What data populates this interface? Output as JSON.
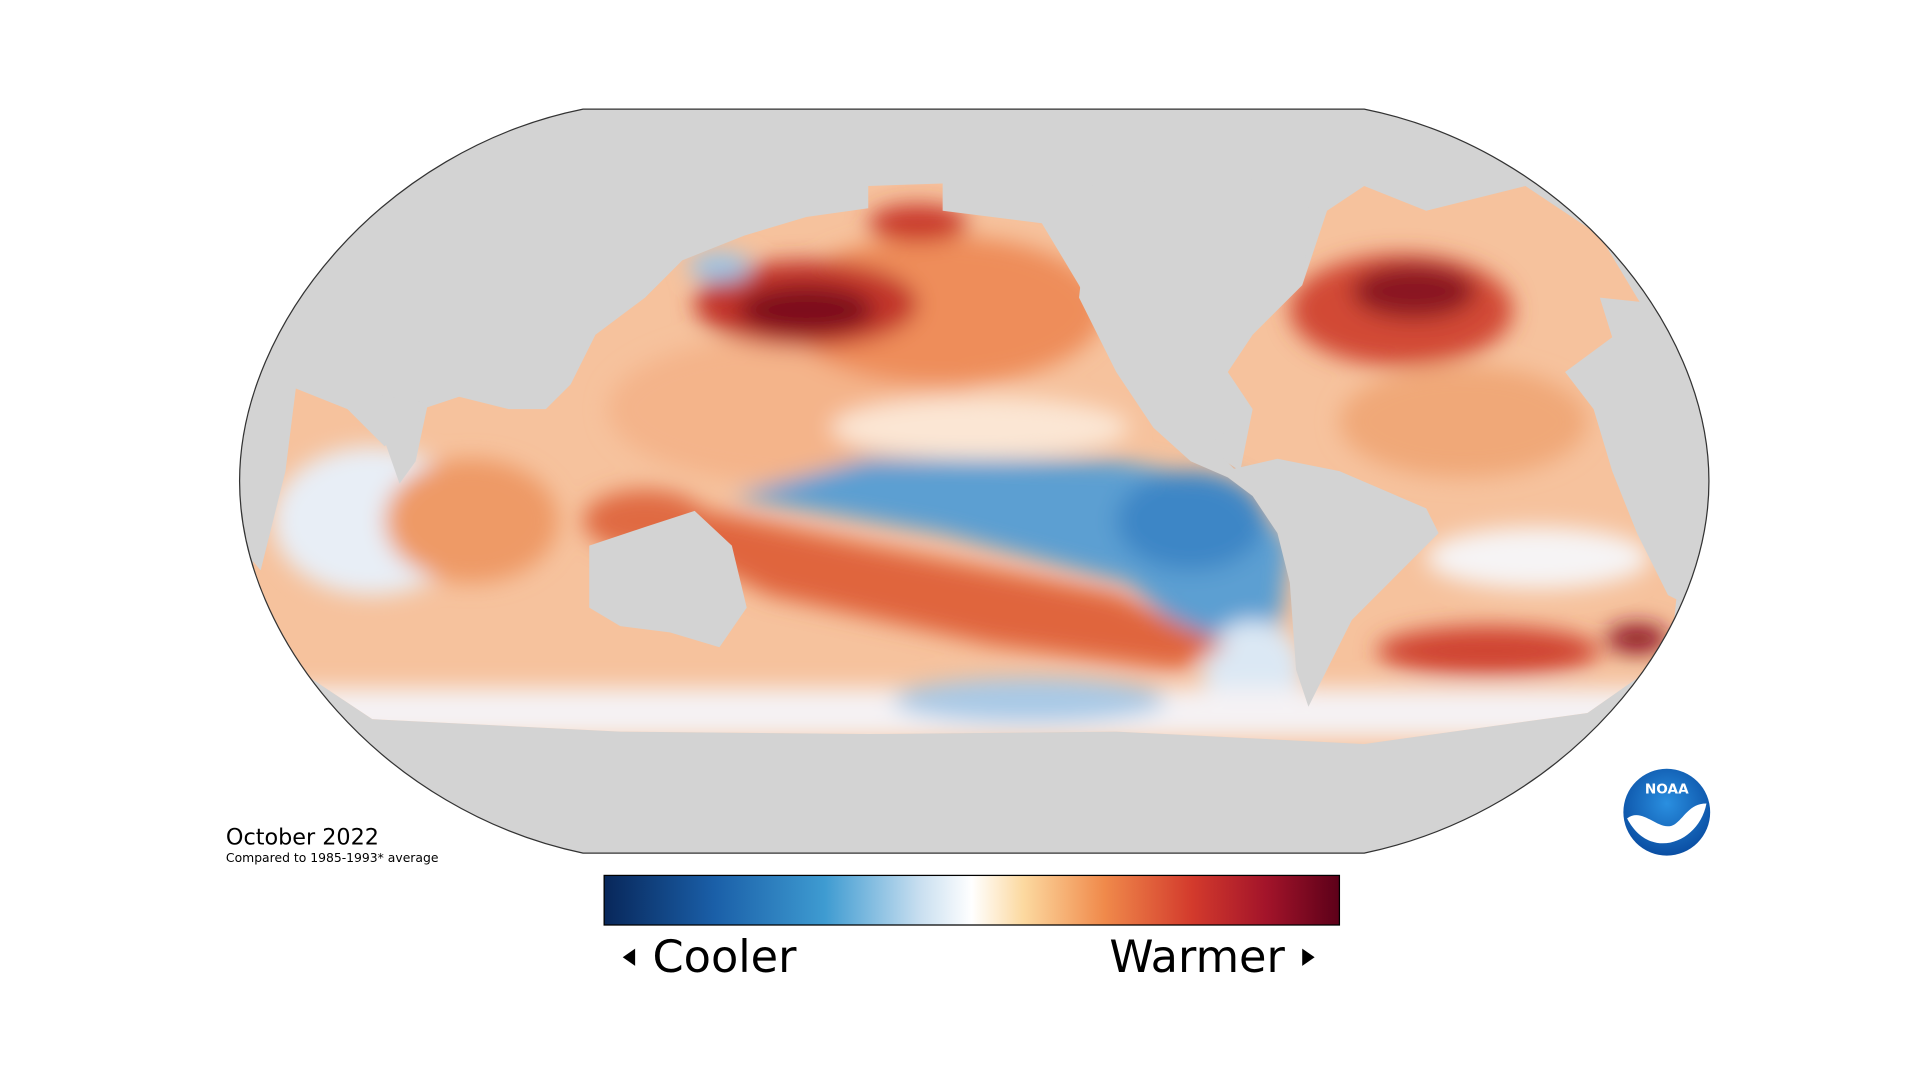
{
  "map": {
    "title": "October 2022",
    "subtitle": "Compared to 1985-1993* average",
    "legend": {
      "low": "Cooler",
      "high": "Warmer"
    },
    "logo": "NOAA"
  }
}
